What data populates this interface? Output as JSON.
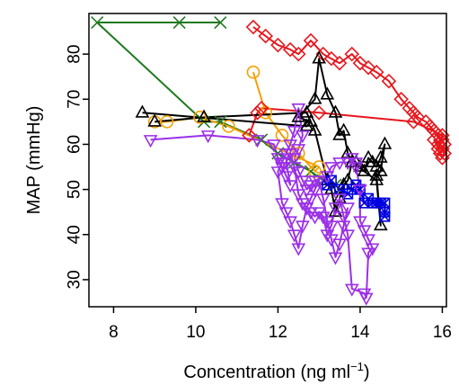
{
  "chart_data": {
    "type": "line",
    "xlabel": "Concentration (ng ml",
    "xlabel_superscript": "−1",
    "xlabel_suffix": ")",
    "ylabel": "MAP (mmHg)",
    "xlim": [
      7.4,
      16.1
    ],
    "ylim": [
      24,
      89
    ],
    "xticks": [
      8,
      10,
      12,
      14,
      16
    ],
    "yticks": [
      30,
      40,
      50,
      60,
      70,
      80
    ],
    "grid": false,
    "legend": "none",
    "series": [
      {
        "color": "#1f7a1f",
        "marker": "x",
        "points": [
          [
            9.6,
            87
          ],
          [
            10.6,
            87
          ],
          [
            7.6,
            87
          ],
          [
            10.2,
            65
          ],
          [
            10.6,
            65
          ],
          [
            11.6,
            61
          ],
          [
            12.0,
            58
          ],
          [
            12.4,
            56
          ],
          [
            12.8,
            54
          ],
          [
            13.1,
            52
          ],
          [
            13.4,
            51
          ]
        ]
      },
      {
        "color": "#f5a000",
        "marker": "circle",
        "points": [
          [
            11.4,
            76
          ],
          [
            11.7,
            67
          ],
          [
            12.1,
            62
          ],
          [
            12.5,
            58
          ],
          [
            12.9,
            54
          ],
          [
            13.0,
            55
          ],
          [
            10.8,
            64
          ],
          [
            10.1,
            66
          ],
          [
            9.3,
            65
          ],
          [
            9.0,
            65
          ]
        ]
      },
      {
        "color": "#e8161c",
        "marker": "diamond",
        "points": [
          [
            11.4,
            86
          ],
          [
            11.7,
            84
          ],
          [
            12.0,
            82
          ],
          [
            12.3,
            81
          ],
          [
            12.5,
            80
          ],
          [
            12.8,
            83
          ],
          [
            13.1,
            80
          ],
          [
            13.3,
            79
          ],
          [
            13.5,
            78
          ],
          [
            13.8,
            80
          ],
          [
            14.0,
            78
          ],
          [
            14.2,
            77
          ],
          [
            14.4,
            76
          ],
          [
            14.7,
            74
          ],
          [
            15.0,
            70
          ],
          [
            15.2,
            68
          ],
          [
            15.3,
            67
          ],
          [
            15.4,
            66
          ],
          [
            15.6,
            65
          ],
          [
            15.7,
            64
          ],
          [
            15.8,
            63
          ],
          [
            15.9,
            62
          ],
          [
            16.0,
            61
          ],
          [
            16.05,
            60
          ],
          [
            16.0,
            59
          ],
          [
            15.95,
            58
          ],
          [
            16.0,
            57
          ],
          [
            16.05,
            58
          ],
          [
            15.9,
            60
          ],
          [
            15.8,
            61
          ],
          [
            15.9,
            59
          ],
          [
            16.0,
            62
          ],
          [
            15.3,
            65
          ],
          [
            13.0,
            67
          ],
          [
            11.6,
            68
          ],
          [
            11.5,
            67
          ],
          [
            11.3,
            62
          ]
        ]
      },
      {
        "color": "#000000",
        "marker": "triangle-up",
        "points": [
          [
            8.7,
            67
          ],
          [
            12.7,
            64
          ],
          [
            12.8,
            65
          ],
          [
            12.5,
            66
          ],
          [
            12.9,
            70
          ],
          [
            13.0,
            79
          ],
          [
            13.2,
            71
          ],
          [
            13.4,
            67
          ],
          [
            13.5,
            62
          ],
          [
            13.6,
            63
          ],
          [
            13.7,
            58
          ],
          [
            13.8,
            56
          ],
          [
            13.9,
            56
          ],
          [
            14.0,
            55
          ],
          [
            14.1,
            54
          ],
          [
            14.2,
            57
          ],
          [
            14.3,
            56
          ],
          [
            14.4,
            55
          ],
          [
            14.5,
            57
          ],
          [
            14.6,
            60
          ],
          [
            14.5,
            54
          ],
          [
            14.4,
            53
          ],
          [
            14.5,
            42
          ],
          [
            14.4,
            52
          ],
          [
            13.8,
            56
          ],
          [
            13.7,
            52
          ],
          [
            13.6,
            51
          ],
          [
            13.5,
            48
          ],
          [
            13.4,
            45
          ],
          [
            13.3,
            50
          ],
          [
            13.2,
            52
          ],
          [
            12.9,
            63
          ],
          [
            12.7,
            67
          ],
          [
            10.2,
            66
          ],
          [
            9.0,
            65
          ]
        ]
      },
      {
        "color": "#0000e0",
        "marker": "square-x",
        "points": [
          [
            13.2,
            51
          ],
          [
            13.3,
            52
          ],
          [
            13.5,
            50
          ],
          [
            13.7,
            49
          ],
          [
            13.8,
            50
          ],
          [
            13.9,
            51
          ],
          [
            14.0,
            50
          ],
          [
            14.1,
            47
          ],
          [
            14.2,
            48
          ],
          [
            14.3,
            47
          ],
          [
            14.4,
            47
          ],
          [
            14.5,
            47
          ],
          [
            14.6,
            47
          ],
          [
            14.6,
            44
          ],
          [
            14.6,
            45
          ]
        ]
      },
      {
        "color": "#9b30e8",
        "marker": "triangle-down",
        "points": [
          [
            8.9,
            61
          ],
          [
            10.3,
            62
          ],
          [
            11.5,
            61
          ],
          [
            11.9,
            60
          ],
          [
            12.0,
            57
          ],
          [
            12.1,
            55
          ],
          [
            12.2,
            53
          ],
          [
            12.3,
            51
          ],
          [
            12.2,
            56
          ],
          [
            12.3,
            58
          ],
          [
            12.4,
            55
          ],
          [
            12.5,
            49
          ],
          [
            12.6,
            47
          ],
          [
            12.7,
            46
          ],
          [
            12.8,
            45
          ],
          [
            12.9,
            44
          ],
          [
            13.0,
            45
          ],
          [
            13.1,
            44
          ],
          [
            13.2,
            40
          ],
          [
            13.3,
            42
          ],
          [
            13.4,
            46
          ],
          [
            13.5,
            48
          ],
          [
            13.6,
            44
          ],
          [
            13.7,
            40
          ],
          [
            13.8,
            28
          ],
          [
            14.1,
            27
          ],
          [
            14.15,
            26
          ],
          [
            14.2,
            36
          ],
          [
            14.3,
            37
          ],
          [
            14.2,
            39
          ],
          [
            14.1,
            41
          ],
          [
            14.0,
            43
          ],
          [
            14.0,
            50
          ],
          [
            13.9,
            55
          ],
          [
            13.8,
            57
          ],
          [
            13.9,
            56
          ],
          [
            13.7,
            56
          ],
          [
            13.5,
            56
          ],
          [
            13.3,
            55
          ],
          [
            13.2,
            53
          ],
          [
            12.9,
            52
          ],
          [
            12.8,
            51
          ],
          [
            12.7,
            50
          ],
          [
            12.6,
            52
          ],
          [
            12.5,
            54
          ],
          [
            12.4,
            57
          ],
          [
            12.5,
            59
          ],
          [
            12.6,
            62
          ],
          [
            12.5,
            68
          ],
          [
            12.4,
            63
          ],
          [
            12.3,
            60
          ],
          [
            12.2,
            58
          ],
          [
            12.1,
            56
          ],
          [
            12.0,
            54
          ],
          [
            12.1,
            47
          ],
          [
            12.2,
            45
          ],
          [
            12.3,
            43
          ],
          [
            12.4,
            40
          ],
          [
            12.5,
            37
          ],
          [
            12.6,
            42
          ],
          [
            12.7,
            46
          ],
          [
            12.8,
            48
          ],
          [
            12.9,
            50
          ],
          [
            13.0,
            52
          ],
          [
            13.1,
            48
          ],
          [
            13.2,
            43
          ],
          [
            13.3,
            39
          ],
          [
            13.4,
            35
          ],
          [
            13.5,
            38
          ],
          [
            13.6,
            42
          ],
          [
            13.7,
            46
          ]
        ]
      }
    ]
  }
}
